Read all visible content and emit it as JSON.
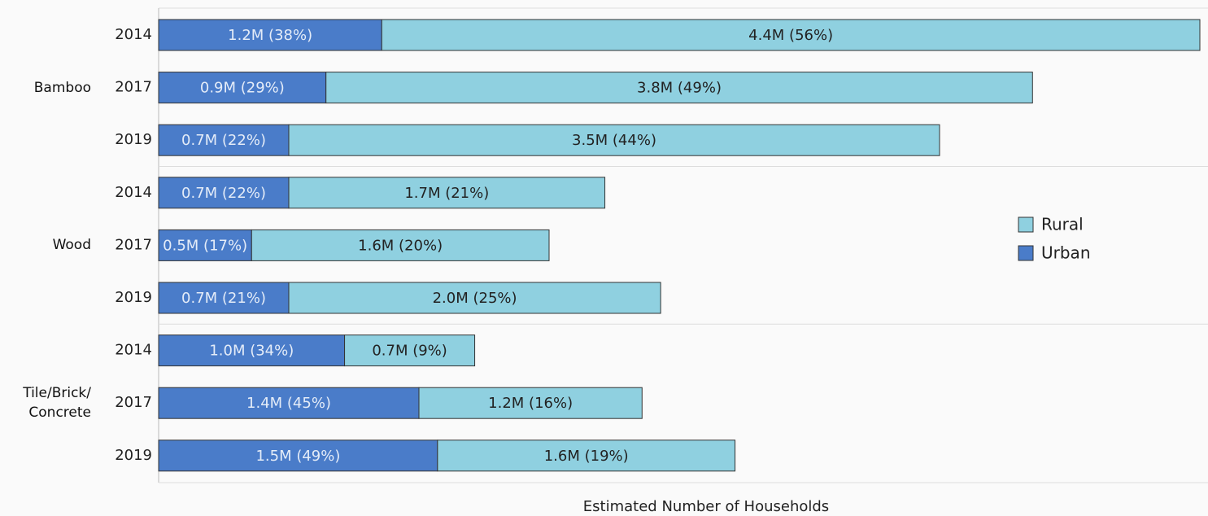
{
  "chart_data": {
    "type": "stacked-bar-horizontal",
    "x_label": "Estimated Number of Households",
    "groups": [
      "Bamboo",
      "Wood",
      "Tile/Brick/\nConcrete"
    ],
    "categories": [
      "2014",
      "2017",
      "2019",
      "2014",
      "2017",
      "2019",
      "2014",
      "2017",
      "2019"
    ],
    "series": [
      {
        "name": "Urban",
        "color": "#4a7cc9",
        "values": [
          1.2,
          0.9,
          0.7,
          0.7,
          0.5,
          0.7,
          1.0,
          1.4,
          1.5
        ],
        "value_labels": [
          "1.2M (38%)",
          "0.9M (29%)",
          "0.7M (22%)",
          "0.7M (22%)",
          "0.5M (17%)",
          "0.7M (21%)",
          "1.0M (34%)",
          "1.4M (45%)",
          "1.5M (49%)"
        ]
      },
      {
        "name": "Rural",
        "color": "#8fd0e0",
        "values": [
          4.4,
          3.8,
          3.5,
          1.7,
          1.6,
          2.0,
          0.7,
          1.2,
          1.6
        ],
        "value_labels": [
          "4.4M (56%)",
          "3.8M (49%)",
          "3.5M (44%)",
          "1.7M (21%)",
          "1.6M (20%)",
          "2.0M (25%)",
          "0.7M (9%)",
          "1.2M (16%)",
          "1.6M (19%)"
        ]
      }
    ],
    "legend": "right"
  }
}
